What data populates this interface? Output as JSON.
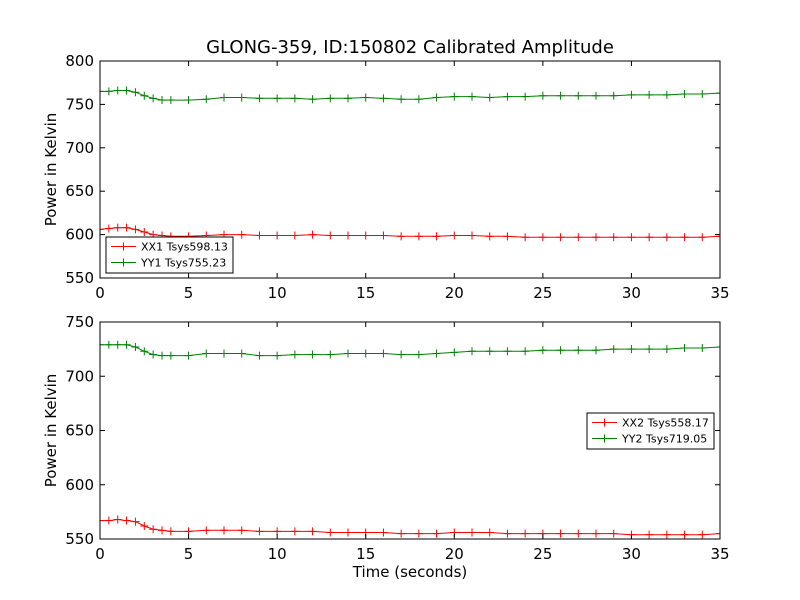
{
  "figure": {
    "title": "GLONG-359, ID:150802 Calibrated Amplitude"
  },
  "chart_data": [
    {
      "type": "line",
      "title": "GLONG-359, ID:150802 Calibrated Amplitude",
      "xlabel": "",
      "ylabel": "Power in Kelvin",
      "xlim": [
        0,
        35
      ],
      "ylim": [
        550,
        800
      ],
      "xticks": [
        0,
        5,
        10,
        15,
        20,
        25,
        30,
        35
      ],
      "yticks": [
        550,
        600,
        650,
        700,
        750,
        800
      ],
      "grid": false,
      "legend": "lower-left",
      "series": [
        {
          "name": "XX1 Tsys598.13",
          "color": "#ff0000",
          "x": [
            0,
            0.5,
            1,
            1.5,
            2,
            2.5,
            3,
            3.5,
            4,
            5,
            6,
            7,
            8,
            9,
            10,
            11,
            12,
            13,
            14,
            15,
            16,
            17,
            18,
            19,
            20,
            21,
            22,
            23,
            24,
            25,
            26,
            27,
            28,
            29,
            30,
            31,
            32,
            33,
            34,
            35
          ],
          "y": [
            606,
            607,
            608,
            608,
            606,
            603,
            600,
            599,
            598,
            598,
            599,
            600,
            600,
            599,
            599,
            599,
            600,
            599,
            599,
            599,
            599,
            598,
            598,
            598,
            599,
            599,
            598,
            598,
            597,
            597,
            597,
            597,
            597,
            597,
            597,
            597,
            597,
            597,
            597,
            598
          ]
        },
        {
          "name": "YY1 Tsys755.23",
          "color": "#008000",
          "x": [
            0,
            0.5,
            1,
            1.5,
            2,
            2.5,
            3,
            3.5,
            4,
            5,
            6,
            7,
            8,
            9,
            10,
            11,
            12,
            13,
            14,
            15,
            16,
            17,
            18,
            19,
            20,
            21,
            22,
            23,
            24,
            25,
            26,
            27,
            28,
            29,
            30,
            31,
            32,
            33,
            34,
            35
          ],
          "y": [
            765,
            765,
            766,
            766,
            764,
            760,
            757,
            755,
            755,
            755,
            756,
            758,
            758,
            757,
            757,
            757,
            756,
            757,
            757,
            758,
            757,
            756,
            756,
            758,
            759,
            759,
            758,
            759,
            759,
            760,
            760,
            760,
            760,
            760,
            761,
            761,
            761,
            762,
            762,
            763
          ]
        }
      ]
    },
    {
      "type": "line",
      "title": "",
      "xlabel": "Time (seconds)",
      "ylabel": "Power in Kelvin",
      "xlim": [
        0,
        35
      ],
      "ylim": [
        550,
        750
      ],
      "xticks": [
        0,
        5,
        10,
        15,
        20,
        25,
        30,
        35
      ],
      "yticks": [
        550,
        600,
        650,
        700,
        750
      ],
      "grid": false,
      "legend": "center-right",
      "series": [
        {
          "name": "XX2 Tsys558.17",
          "color": "#ff0000",
          "x": [
            0,
            0.5,
            1,
            1.5,
            2,
            2.5,
            3,
            3.5,
            4,
            5,
            6,
            7,
            8,
            9,
            10,
            11,
            12,
            13,
            14,
            15,
            16,
            17,
            18,
            19,
            20,
            21,
            22,
            23,
            24,
            25,
            26,
            27,
            28,
            29,
            30,
            31,
            32,
            33,
            34,
            35
          ],
          "y": [
            567,
            567,
            568,
            567,
            566,
            562,
            559,
            558,
            557,
            557,
            558,
            558,
            558,
            557,
            557,
            557,
            557,
            556,
            556,
            556,
            556,
            555,
            555,
            555,
            556,
            556,
            556,
            555,
            555,
            555,
            555,
            555,
            555,
            555,
            554,
            554,
            554,
            554,
            554,
            555
          ]
        },
        {
          "name": "YY2 Tsys719.05",
          "color": "#008000",
          "x": [
            0,
            0.5,
            1,
            1.5,
            2,
            2.5,
            3,
            3.5,
            4,
            5,
            6,
            7,
            8,
            9,
            10,
            11,
            12,
            13,
            14,
            15,
            16,
            17,
            18,
            19,
            20,
            21,
            22,
            23,
            24,
            25,
            26,
            27,
            28,
            29,
            30,
            31,
            32,
            33,
            34,
            35
          ],
          "y": [
            729,
            729,
            729,
            729,
            727,
            723,
            720,
            719,
            719,
            719,
            721,
            721,
            721,
            719,
            719,
            720,
            720,
            720,
            721,
            721,
            721,
            720,
            720,
            721,
            722,
            723,
            723,
            723,
            723,
            724,
            724,
            724,
            724,
            725,
            725,
            725,
            725,
            726,
            726,
            727
          ]
        }
      ]
    }
  ]
}
